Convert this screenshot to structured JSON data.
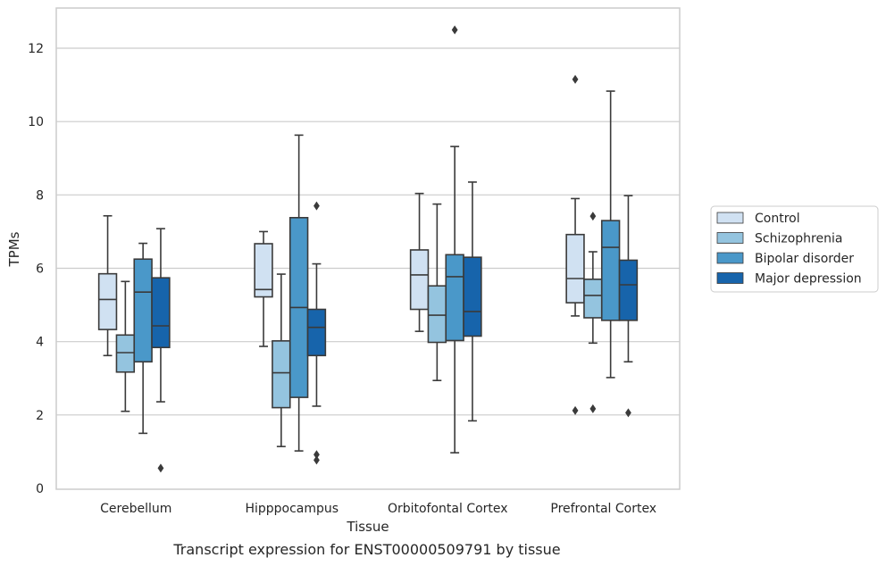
{
  "chart_data": {
    "type": "box",
    "xlabel": "Tissue",
    "ylabel": "TPMs",
    "ylim": [
      0,
      13.1
    ],
    "yticks": [
      0,
      2,
      4,
      6,
      8,
      10,
      12
    ],
    "grid": "horizontal",
    "legend_position": "right",
    "categories": [
      "Cerebellum",
      "Hipppocampus",
      "Orbitofontal Cortex",
      "Prefrontal Cortex"
    ],
    "series": [
      {
        "name": "Control",
        "color": "#d0e1f2",
        "boxes": [
          {
            "whislo": 3.62,
            "q1": 4.33,
            "med": 5.15,
            "q3": 5.85,
            "whishi": 7.43,
            "fliers": []
          },
          {
            "whislo": 3.87,
            "q1": 5.22,
            "med": 5.42,
            "q3": 6.67,
            "whishi": 7.0,
            "fliers": []
          },
          {
            "whislo": 4.28,
            "q1": 4.88,
            "med": 5.82,
            "q3": 6.5,
            "whishi": 8.04,
            "fliers": []
          },
          {
            "whislo": 4.7,
            "q1": 5.06,
            "med": 5.72,
            "q3": 6.92,
            "whishi": 7.9,
            "fliers": [
              11.15,
              2.12
            ]
          }
        ]
      },
      {
        "name": "Schizophrenia",
        "color": "#94c4df",
        "boxes": [
          {
            "whislo": 2.1,
            "q1": 3.17,
            "med": 3.7,
            "q3": 4.18,
            "whishi": 5.64,
            "fliers": []
          },
          {
            "whislo": 1.14,
            "q1": 2.2,
            "med": 3.15,
            "q3": 4.02,
            "whishi": 5.84,
            "fliers": []
          },
          {
            "whislo": 2.94,
            "q1": 3.98,
            "med": 4.72,
            "q3": 5.52,
            "whishi": 7.75,
            "fliers": []
          },
          {
            "whislo": 3.96,
            "q1": 4.65,
            "med": 5.26,
            "q3": 5.7,
            "whishi": 6.45,
            "fliers": [
              7.42,
              2.17
            ]
          }
        ]
      },
      {
        "name": "Bipolar disorder",
        "color": "#4a98c9",
        "boxes": [
          {
            "whislo": 1.5,
            "q1": 3.45,
            "med": 5.35,
            "q3": 6.25,
            "whishi": 6.68,
            "fliers": []
          },
          {
            "whislo": 1.02,
            "q1": 2.48,
            "med": 4.93,
            "q3": 7.38,
            "whishi": 9.63,
            "fliers": []
          },
          {
            "whislo": 0.97,
            "q1": 4.03,
            "med": 5.77,
            "q3": 6.37,
            "whishi": 9.32,
            "fliers": [
              12.5
            ]
          },
          {
            "whislo": 3.02,
            "q1": 4.58,
            "med": 6.57,
            "q3": 7.3,
            "whishi": 10.83,
            "fliers": []
          }
        ]
      },
      {
        "name": "Major depression",
        "color": "#1764ab",
        "boxes": [
          {
            "whislo": 2.36,
            "q1": 3.84,
            "med": 4.43,
            "q3": 5.74,
            "whishi": 7.08,
            "fliers": [
              0.55
            ]
          },
          {
            "whislo": 2.24,
            "q1": 3.62,
            "med": 4.39,
            "q3": 4.88,
            "whishi": 6.12,
            "fliers": [
              7.7,
              0.92,
              0.77
            ]
          },
          {
            "whislo": 1.84,
            "q1": 4.15,
            "med": 4.82,
            "q3": 6.3,
            "whishi": 8.35,
            "fliers": []
          },
          {
            "whislo": 3.45,
            "q1": 4.58,
            "med": 5.55,
            "q3": 6.22,
            "whishi": 7.98,
            "fliers": [
              2.06
            ]
          }
        ]
      }
    ],
    "caption": "Transcript expression for ENST00000509791 by tissue"
  }
}
